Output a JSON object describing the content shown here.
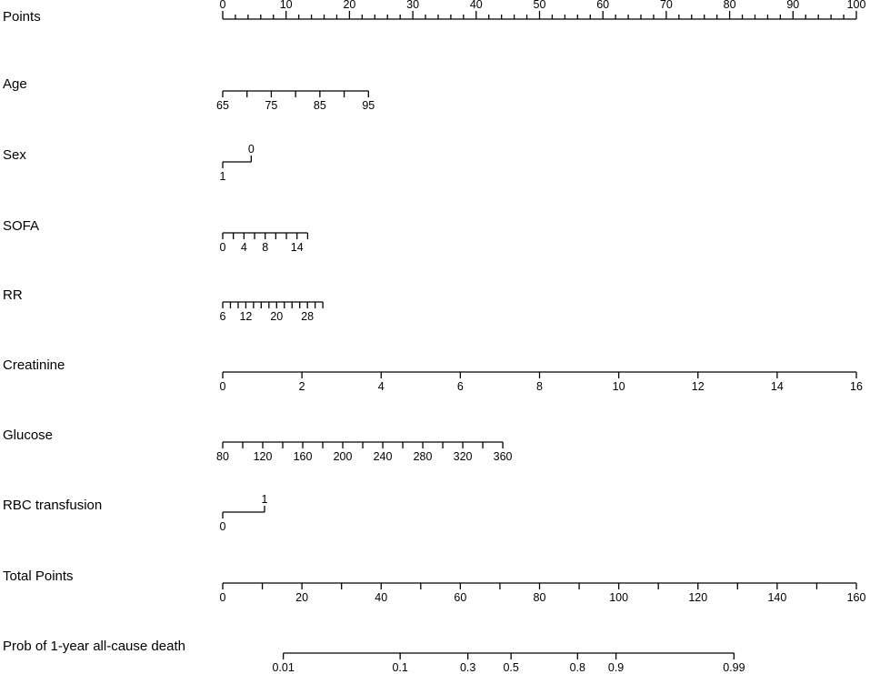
{
  "chart_data": {
    "type": "nomogram",
    "title": "",
    "rows": [
      {
        "key": "points",
        "label": "Points",
        "kind": "points",
        "range": [
          0,
          100
        ],
        "major": [
          0,
          10,
          20,
          30,
          40,
          50,
          60,
          70,
          80,
          90,
          100
        ],
        "minor_step": 2
      },
      {
        "key": "age",
        "label": "Age",
        "kind": "continuous",
        "range": [
          65,
          95
        ],
        "points_range": [
          0,
          23
        ],
        "ticks": [
          65,
          70,
          75,
          80,
          85,
          90,
          95
        ],
        "labels": [
          65,
          75,
          85,
          95
        ]
      },
      {
        "key": "sex",
        "label": "Sex",
        "kind": "binary",
        "levels": [
          {
            "value": "1",
            "points": 0,
            "position": "below"
          },
          {
            "value": "0",
            "points": 4.5,
            "position": "above"
          }
        ]
      },
      {
        "key": "sofa",
        "label": "SOFA",
        "kind": "continuous",
        "range": [
          0,
          16
        ],
        "points_range": [
          0,
          13.4
        ],
        "ticks": [
          0,
          2,
          4,
          6,
          8,
          10,
          12,
          14,
          16
        ],
        "labels": [
          0,
          4,
          8,
          14
        ]
      },
      {
        "key": "rr",
        "label": "RR",
        "kind": "continuous",
        "range": [
          6,
          32
        ],
        "points_range": [
          0,
          15.8
        ],
        "ticks": [
          6,
          8,
          10,
          12,
          14,
          16,
          18,
          20,
          22,
          24,
          26,
          28,
          30,
          32
        ],
        "labels": [
          6,
          12,
          20,
          28
        ]
      },
      {
        "key": "creatinine",
        "label": "Creatinine",
        "kind": "continuous",
        "range": [
          0,
          16
        ],
        "points_range": [
          0,
          100
        ],
        "ticks": [
          0,
          2,
          4,
          6,
          8,
          10,
          12,
          14,
          16
        ],
        "labels": [
          0,
          2,
          4,
          6,
          8,
          10,
          12,
          14,
          16
        ]
      },
      {
        "key": "glucose",
        "label": "Glucose",
        "kind": "continuous",
        "range": [
          80,
          360
        ],
        "points_range": [
          0,
          44.2
        ],
        "ticks": [
          80,
          100,
          120,
          140,
          160,
          180,
          200,
          220,
          240,
          260,
          280,
          300,
          320,
          340,
          360
        ],
        "labels": [
          80,
          120,
          160,
          200,
          240,
          280,
          320,
          360
        ]
      },
      {
        "key": "rbc",
        "label": "RBC transfusion",
        "kind": "binary",
        "levels": [
          {
            "value": "0",
            "points": 0,
            "position": "below"
          },
          {
            "value": "1",
            "points": 6.6,
            "position": "above"
          }
        ]
      },
      {
        "key": "total",
        "label": "Total Points",
        "kind": "continuous",
        "range": [
          0,
          160
        ],
        "points_range": [
          0,
          100
        ],
        "ticks": [
          0,
          10,
          20,
          30,
          40,
          50,
          60,
          70,
          80,
          90,
          100,
          110,
          120,
          130,
          140,
          150,
          160
        ],
        "labels": [
          0,
          20,
          40,
          60,
          80,
          100,
          120,
          140,
          160
        ]
      },
      {
        "key": "prob",
        "label": "Prob of 1-year all-cause death",
        "kind": "probability",
        "total_points_range": [
          0,
          160
        ],
        "ticks": [
          {
            "label": "0.01",
            "total_points": 15.3
          },
          {
            "label": "0.1",
            "total_points": 44.8
          },
          {
            "label": "0.3",
            "total_points": 61.9
          },
          {
            "label": "0.5",
            "total_points": 72.8
          },
          {
            "label": "0.8",
            "total_points": 89.6
          },
          {
            "label": "0.9",
            "total_points": 99.3
          },
          {
            "label": "0.99",
            "total_points": 129.1
          }
        ]
      }
    ]
  }
}
